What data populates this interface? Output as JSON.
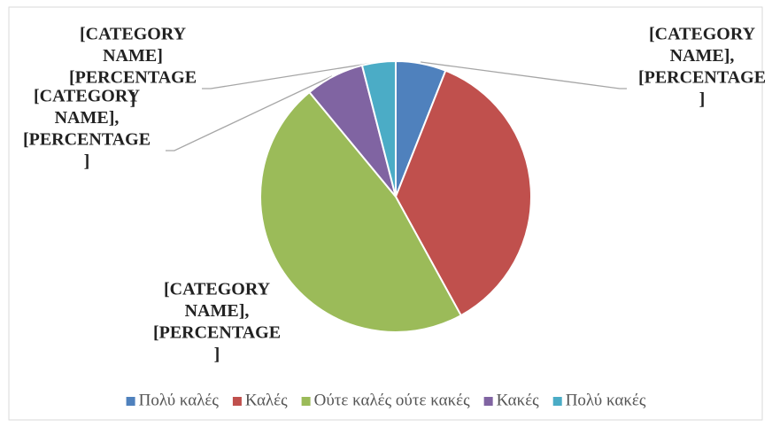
{
  "chart_data": {
    "type": "pie",
    "categories": [
      "Πολύ καλές",
      "Καλές",
      "Ούτε καλές ούτε κακές",
      "Κακές",
      "Πολύ κακές"
    ],
    "values": [
      6,
      36,
      47,
      7,
      4
    ],
    "colors": [
      "#4f81bd",
      "#c0504d",
      "#9bbb59",
      "#8064a2",
      "#4bacc6"
    ],
    "data_labels": [
      [
        "[CATEGORY",
        "NAME],",
        "[PERCENTAGE",
        "]"
      ],
      null,
      [
        "[CATEGORY",
        "NAME],",
        "[PERCENTAGE",
        "]"
      ],
      [
        "[CATEGORY",
        "NAME],",
        "[PERCENTAGE",
        "]"
      ],
      [
        "[CATEGORY",
        "NAME]",
        "[PERCENTAGE",
        "]"
      ]
    ],
    "legend": "bottom"
  }
}
